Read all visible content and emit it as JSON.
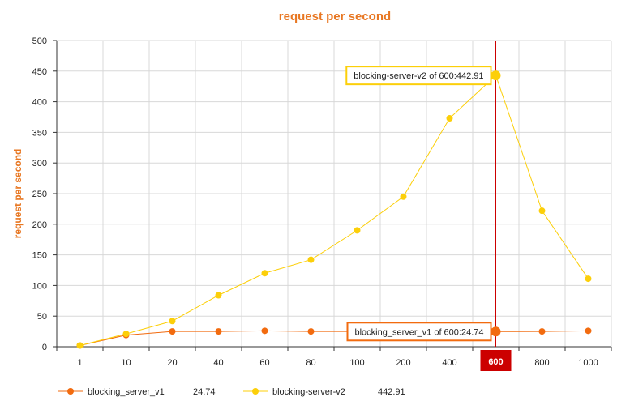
{
  "chart_data": {
    "type": "line",
    "title": "request per second",
    "ylabel": "request per second",
    "xlabel": "",
    "categories": [
      "1",
      "10",
      "20",
      "40",
      "60",
      "80",
      "100",
      "200",
      "400",
      "600",
      "800",
      "1000"
    ],
    "ylim": [
      0,
      500
    ],
    "yticks": [
      0,
      50,
      100,
      150,
      200,
      250,
      300,
      350,
      400,
      450,
      500
    ],
    "grid": true,
    "legend_position": "bottom-left",
    "colors": {
      "title": "#e87722",
      "grid": "#d8d8d8",
      "highlight": "#cc0000"
    },
    "series": [
      {
        "name": "blocking_server_v1",
        "color": "#f26b0f",
        "values": [
          2,
          19,
          25,
          25,
          26,
          25,
          25,
          25,
          25,
          24.74,
          25,
          26
        ],
        "legend_value": "24.74"
      },
      {
        "name": "blocking-server-v2",
        "color": "#fccf09",
        "values": [
          2,
          21,
          42,
          84,
          120,
          142,
          190,
          245,
          373,
          442.91,
          222,
          111
        ],
        "legend_value": "442.91"
      }
    ],
    "highlight": {
      "category": "600",
      "tooltips": [
        {
          "series": "blocking-server-v2",
          "text": "blocking-server-v2 of 600:442.91"
        },
        {
          "series": "blocking_server_v1",
          "text": "blocking_server_v1 of 600:24.74"
        }
      ]
    }
  }
}
